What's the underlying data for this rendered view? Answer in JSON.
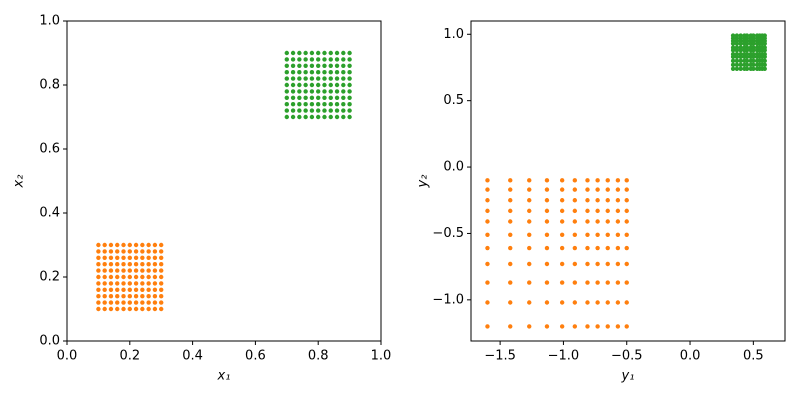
{
  "chart_data": [
    {
      "type": "scatter",
      "xlabel": "x₁",
      "ylabel": "x₂",
      "xlim": [
        0,
        1
      ],
      "ylim": [
        0,
        1
      ],
      "xticks": [
        {
          "value": 0,
          "label": "0.0"
        },
        0.2,
        0.4,
        0.6,
        0.8,
        {
          "value": 1,
          "label": "1.0"
        }
      ],
      "yticks": [
        {
          "value": 0,
          "label": "0.0"
        },
        0.2,
        0.4,
        0.6,
        0.8,
        {
          "value": 1,
          "label": "1.0"
        }
      ],
      "series": [
        {
          "color": "#ff7f0e",
          "x": [
            0.1,
            0.12,
            0.14,
            0.16,
            0.18,
            0.2,
            0.22,
            0.24,
            0.26,
            0.28,
            0.3,
            0.1,
            0.12,
            0.14,
            0.16,
            0.18,
            0.2,
            0.22,
            0.24,
            0.26,
            0.28,
            0.3,
            0.1,
            0.12,
            0.14,
            0.16,
            0.18,
            0.2,
            0.22,
            0.24,
            0.26,
            0.28,
            0.3,
            0.1,
            0.12,
            0.14,
            0.16,
            0.18,
            0.2,
            0.22,
            0.24,
            0.26,
            0.28,
            0.3,
            0.1,
            0.12,
            0.14,
            0.16,
            0.18,
            0.2,
            0.22,
            0.24,
            0.26,
            0.28,
            0.3,
            0.1,
            0.12,
            0.14,
            0.16,
            0.18,
            0.2,
            0.22,
            0.24,
            0.26,
            0.28,
            0.3,
            0.1,
            0.12,
            0.14,
            0.16,
            0.18,
            0.2,
            0.22,
            0.24,
            0.26,
            0.28,
            0.3,
            0.1,
            0.12,
            0.14,
            0.16,
            0.18,
            0.2,
            0.22,
            0.24,
            0.26,
            0.28,
            0.3,
            0.1,
            0.12,
            0.14,
            0.16,
            0.18,
            0.2,
            0.22,
            0.24,
            0.26,
            0.28,
            0.3,
            0.1,
            0.12,
            0.14,
            0.16,
            0.18,
            0.2,
            0.22,
            0.24,
            0.26,
            0.28,
            0.3,
            0.1,
            0.12,
            0.14,
            0.16,
            0.18,
            0.2,
            0.22,
            0.24,
            0.26,
            0.28,
            0.3
          ],
          "y": [
            0.1,
            0.1,
            0.1,
            0.1,
            0.1,
            0.1,
            0.1,
            0.1,
            0.1,
            0.1,
            0.1,
            0.12,
            0.12,
            0.12,
            0.12,
            0.12,
            0.12,
            0.12,
            0.12,
            0.12,
            0.12,
            0.12,
            0.14,
            0.14,
            0.14,
            0.14,
            0.14,
            0.14,
            0.14,
            0.14,
            0.14,
            0.14,
            0.14,
            0.16,
            0.16,
            0.16,
            0.16,
            0.16,
            0.16,
            0.16,
            0.16,
            0.16,
            0.16,
            0.16,
            0.18,
            0.18,
            0.18,
            0.18,
            0.18,
            0.18,
            0.18,
            0.18,
            0.18,
            0.18,
            0.18,
            0.2,
            0.2,
            0.2,
            0.2,
            0.2,
            0.2,
            0.2,
            0.2,
            0.2,
            0.2,
            0.2,
            0.22,
            0.22,
            0.22,
            0.22,
            0.22,
            0.22,
            0.22,
            0.22,
            0.22,
            0.22,
            0.22,
            0.24,
            0.24,
            0.24,
            0.24,
            0.24,
            0.24,
            0.24,
            0.24,
            0.24,
            0.24,
            0.24,
            0.26,
            0.26,
            0.26,
            0.26,
            0.26,
            0.26,
            0.26,
            0.26,
            0.26,
            0.26,
            0.26,
            0.28,
            0.28,
            0.28,
            0.28,
            0.28,
            0.28,
            0.28,
            0.28,
            0.28,
            0.28,
            0.28,
            0.3,
            0.3,
            0.3,
            0.3,
            0.3,
            0.3,
            0.3,
            0.3,
            0.3,
            0.3,
            0.3
          ]
        },
        {
          "color": "#2ca02c",
          "x": [
            0.7,
            0.72,
            0.74,
            0.76,
            0.78,
            0.8,
            0.82,
            0.84,
            0.86,
            0.88,
            0.9,
            0.7,
            0.72,
            0.74,
            0.76,
            0.78,
            0.8,
            0.82,
            0.84,
            0.86,
            0.88,
            0.9,
            0.7,
            0.72,
            0.74,
            0.76,
            0.78,
            0.8,
            0.82,
            0.84,
            0.86,
            0.88,
            0.9,
            0.7,
            0.72,
            0.74,
            0.76,
            0.78,
            0.8,
            0.82,
            0.84,
            0.86,
            0.88,
            0.9,
            0.7,
            0.72,
            0.74,
            0.76,
            0.78,
            0.8,
            0.82,
            0.84,
            0.86,
            0.88,
            0.9,
            0.7,
            0.72,
            0.74,
            0.76,
            0.78,
            0.8,
            0.82,
            0.84,
            0.86,
            0.88,
            0.9,
            0.7,
            0.72,
            0.74,
            0.76,
            0.78,
            0.8,
            0.82,
            0.84,
            0.86,
            0.88,
            0.9,
            0.7,
            0.72,
            0.74,
            0.76,
            0.78,
            0.8,
            0.82,
            0.84,
            0.86,
            0.88,
            0.9,
            0.7,
            0.72,
            0.74,
            0.76,
            0.78,
            0.8,
            0.82,
            0.84,
            0.86,
            0.88,
            0.9,
            0.7,
            0.72,
            0.74,
            0.76,
            0.78,
            0.8,
            0.82,
            0.84,
            0.86,
            0.88,
            0.9,
            0.7,
            0.72,
            0.74,
            0.76,
            0.78,
            0.8,
            0.82,
            0.84,
            0.86,
            0.88,
            0.9
          ],
          "y": [
            0.7,
            0.7,
            0.7,
            0.7,
            0.7,
            0.7,
            0.7,
            0.7,
            0.7,
            0.7,
            0.7,
            0.72,
            0.72,
            0.72,
            0.72,
            0.72,
            0.72,
            0.72,
            0.72,
            0.72,
            0.72,
            0.72,
            0.74,
            0.74,
            0.74,
            0.74,
            0.74,
            0.74,
            0.74,
            0.74,
            0.74,
            0.74,
            0.74,
            0.76,
            0.76,
            0.76,
            0.76,
            0.76,
            0.76,
            0.76,
            0.76,
            0.76,
            0.76,
            0.76,
            0.78,
            0.78,
            0.78,
            0.78,
            0.78,
            0.78,
            0.78,
            0.78,
            0.78,
            0.78,
            0.78,
            0.8,
            0.8,
            0.8,
            0.8,
            0.8,
            0.8,
            0.8,
            0.8,
            0.8,
            0.8,
            0.8,
            0.82,
            0.82,
            0.82,
            0.82,
            0.82,
            0.82,
            0.82,
            0.82,
            0.82,
            0.82,
            0.82,
            0.84,
            0.84,
            0.84,
            0.84,
            0.84,
            0.84,
            0.84,
            0.84,
            0.84,
            0.84,
            0.84,
            0.86,
            0.86,
            0.86,
            0.86,
            0.86,
            0.86,
            0.86,
            0.86,
            0.86,
            0.86,
            0.86,
            0.88,
            0.88,
            0.88,
            0.88,
            0.88,
            0.88,
            0.88,
            0.88,
            0.88,
            0.88,
            0.88,
            0.9,
            0.9,
            0.9,
            0.9,
            0.9,
            0.9,
            0.9,
            0.9,
            0.9,
            0.9,
            0.9
          ]
        }
      ]
    },
    {
      "type": "scatter",
      "xlabel": "y₁",
      "ylabel": "y₂",
      "xlim": [
        -1.73,
        0.75
      ],
      "ylim": [
        -1.31,
        1.1
      ],
      "xticks": [
        {
          "value": -1.5,
          "label": "−1.5"
        },
        {
          "value": -1,
          "label": "−1.0"
        },
        {
          "value": -0.5,
          "label": "−0.5"
        },
        {
          "value": 0,
          "label": "0.0"
        },
        0.5
      ],
      "yticks": [
        {
          "value": -1,
          "label": "−1.0"
        },
        {
          "value": -0.5,
          "label": "−0.5"
        },
        {
          "value": 0,
          "label": "0.0"
        },
        0.5,
        {
          "value": 1,
          "label": "1.0"
        }
      ],
      "series": [
        {
          "color": "#ff7f0e",
          "x": [
            -1.6,
            -1.42,
            -1.27,
            -1.13,
            -1.01,
            -0.91,
            -0.81,
            -0.73,
            -0.65,
            -0.57,
            -0.5,
            -1.6,
            -1.42,
            -1.27,
            -1.13,
            -1.01,
            -0.91,
            -0.81,
            -0.73,
            -0.65,
            -0.57,
            -0.5,
            -1.6,
            -1.42,
            -1.27,
            -1.13,
            -1.01,
            -0.91,
            -0.81,
            -0.73,
            -0.65,
            -0.57,
            -0.5,
            -1.6,
            -1.42,
            -1.27,
            -1.13,
            -1.01,
            -0.91,
            -0.81,
            -0.73,
            -0.65,
            -0.57,
            -0.5,
            -1.6,
            -1.42,
            -1.27,
            -1.13,
            -1.01,
            -0.91,
            -0.81,
            -0.73,
            -0.65,
            -0.57,
            -0.5,
            -1.6,
            -1.42,
            -1.27,
            -1.13,
            -1.01,
            -0.91,
            -0.81,
            -0.73,
            -0.65,
            -0.57,
            -0.5,
            -1.6,
            -1.42,
            -1.27,
            -1.13,
            -1.01,
            -0.91,
            -0.81,
            -0.73,
            -0.65,
            -0.57,
            -0.5,
            -1.6,
            -1.42,
            -1.27,
            -1.13,
            -1.01,
            -0.91,
            -0.81,
            -0.73,
            -0.65,
            -0.57,
            -0.5,
            -1.6,
            -1.42,
            -1.27,
            -1.13,
            -1.01,
            -0.91,
            -0.81,
            -0.73,
            -0.65,
            -0.57,
            -0.5,
            -1.6,
            -1.42,
            -1.27,
            -1.13,
            -1.01,
            -0.91,
            -0.81,
            -0.73,
            -0.65,
            -0.57,
            -0.5,
            -1.6,
            -1.42,
            -1.27,
            -1.13,
            -1.01,
            -0.91,
            -0.81,
            -0.73,
            -0.65,
            -0.57,
            -0.5
          ],
          "y": [
            -1.2,
            -1.2,
            -1.2,
            -1.2,
            -1.2,
            -1.2,
            -1.2,
            -1.2,
            -1.2,
            -1.2,
            -1.2,
            -1.02,
            -1.02,
            -1.02,
            -1.02,
            -1.02,
            -1.02,
            -1.02,
            -1.02,
            -1.02,
            -1.02,
            -1.02,
            -0.87,
            -0.87,
            -0.87,
            -0.87,
            -0.87,
            -0.87,
            -0.87,
            -0.87,
            -0.87,
            -0.87,
            -0.87,
            -0.73,
            -0.73,
            -0.73,
            -0.73,
            -0.73,
            -0.73,
            -0.73,
            -0.73,
            -0.73,
            -0.73,
            -0.73,
            -0.61,
            -0.61,
            -0.61,
            -0.61,
            -0.61,
            -0.61,
            -0.61,
            -0.61,
            -0.61,
            -0.61,
            -0.61,
            -0.51,
            -0.51,
            -0.51,
            -0.51,
            -0.51,
            -0.51,
            -0.51,
            -0.51,
            -0.51,
            -0.51,
            -0.51,
            -0.41,
            -0.41,
            -0.41,
            -0.41,
            -0.41,
            -0.41,
            -0.41,
            -0.41,
            -0.41,
            -0.41,
            -0.41,
            -0.33,
            -0.33,
            -0.33,
            -0.33,
            -0.33,
            -0.33,
            -0.33,
            -0.33,
            -0.33,
            -0.33,
            -0.33,
            -0.25,
            -0.25,
            -0.25,
            -0.25,
            -0.25,
            -0.25,
            -0.25,
            -0.25,
            -0.25,
            -0.25,
            -0.25,
            -0.17,
            -0.17,
            -0.17,
            -0.17,
            -0.17,
            -0.17,
            -0.17,
            -0.17,
            -0.17,
            -0.17,
            -0.17,
            -0.1,
            -0.1,
            -0.1,
            -0.1,
            -0.1,
            -0.1,
            -0.1,
            -0.1,
            -0.1,
            -0.1,
            -0.1
          ]
        },
        {
          "color": "#2ca02c",
          "x": [
            0.34,
            0.37,
            0.4,
            0.43,
            0.45,
            0.48,
            0.5,
            0.53,
            0.55,
            0.57,
            0.59,
            0.34,
            0.37,
            0.4,
            0.43,
            0.45,
            0.48,
            0.5,
            0.53,
            0.55,
            0.57,
            0.59,
            0.34,
            0.37,
            0.4,
            0.43,
            0.45,
            0.48,
            0.5,
            0.53,
            0.55,
            0.57,
            0.59,
            0.34,
            0.37,
            0.4,
            0.43,
            0.45,
            0.48,
            0.5,
            0.53,
            0.55,
            0.57,
            0.59,
            0.34,
            0.37,
            0.4,
            0.43,
            0.45,
            0.48,
            0.5,
            0.53,
            0.55,
            0.57,
            0.59,
            0.34,
            0.37,
            0.4,
            0.43,
            0.45,
            0.48,
            0.5,
            0.53,
            0.55,
            0.57,
            0.59,
            0.34,
            0.37,
            0.4,
            0.43,
            0.45,
            0.48,
            0.5,
            0.53,
            0.55,
            0.57,
            0.59,
            0.34,
            0.37,
            0.4,
            0.43,
            0.45,
            0.48,
            0.5,
            0.53,
            0.55,
            0.57,
            0.59,
            0.34,
            0.37,
            0.4,
            0.43,
            0.45,
            0.48,
            0.5,
            0.53,
            0.55,
            0.57,
            0.59,
            0.34,
            0.37,
            0.4,
            0.43,
            0.45,
            0.48,
            0.5,
            0.53,
            0.55,
            0.57,
            0.59,
            0.34,
            0.37,
            0.4,
            0.43,
            0.45,
            0.48,
            0.5,
            0.53,
            0.55,
            0.57,
            0.59
          ],
          "y": [
            0.74,
            0.74,
            0.74,
            0.74,
            0.74,
            0.74,
            0.74,
            0.74,
            0.74,
            0.74,
            0.74,
            0.77,
            0.77,
            0.77,
            0.77,
            0.77,
            0.77,
            0.77,
            0.77,
            0.77,
            0.77,
            0.77,
            0.8,
            0.8,
            0.8,
            0.8,
            0.8,
            0.8,
            0.8,
            0.8,
            0.8,
            0.8,
            0.8,
            0.83,
            0.83,
            0.83,
            0.83,
            0.83,
            0.83,
            0.83,
            0.83,
            0.83,
            0.83,
            0.83,
            0.85,
            0.85,
            0.85,
            0.85,
            0.85,
            0.85,
            0.85,
            0.85,
            0.85,
            0.85,
            0.85,
            0.88,
            0.88,
            0.88,
            0.88,
            0.88,
            0.88,
            0.88,
            0.88,
            0.88,
            0.88,
            0.88,
            0.9,
            0.9,
            0.9,
            0.9,
            0.9,
            0.9,
            0.9,
            0.9,
            0.9,
            0.9,
            0.9,
            0.93,
            0.93,
            0.93,
            0.93,
            0.93,
            0.93,
            0.93,
            0.93,
            0.93,
            0.93,
            0.93,
            0.95,
            0.95,
            0.95,
            0.95,
            0.95,
            0.95,
            0.95,
            0.95,
            0.95,
            0.95,
            0.95,
            0.97,
            0.97,
            0.97,
            0.97,
            0.97,
            0.97,
            0.97,
            0.97,
            0.97,
            0.97,
            0.97,
            0.99,
            0.99,
            0.99,
            0.99,
            0.99,
            0.99,
            0.99,
            0.99,
            0.99,
            0.99,
            0.99
          ]
        }
      ]
    }
  ]
}
